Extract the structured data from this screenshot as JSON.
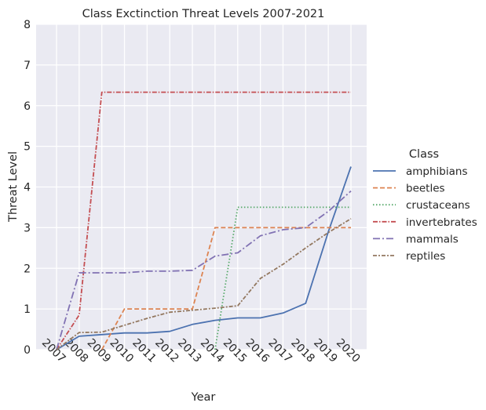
{
  "chart_data": {
    "type": "line",
    "title": "Class Exctinction Threat Levels 2007-2021",
    "xlabel": "Year",
    "ylabel": "Threat Level",
    "legend_title": "Class",
    "legend_position": "right",
    "grid": true,
    "xlim": [
      2007,
      2020
    ],
    "ylim": [
      0,
      8
    ],
    "x_ticks": [
      "2007",
      "2008",
      "2009",
      "2010",
      "2011",
      "2012",
      "2013",
      "2014",
      "2015",
      "2016",
      "2017",
      "2018",
      "2019",
      "2020"
    ],
    "y_ticks": [
      "0",
      "1",
      "2",
      "3",
      "4",
      "5",
      "6",
      "7",
      "8"
    ],
    "series": [
      {
        "name": "amphibians",
        "color": "#4c72b0",
        "dash": "solid",
        "points": [
          [
            2007,
            0.0
          ],
          [
            2008,
            0.33
          ],
          [
            2009,
            0.37
          ],
          [
            2010,
            0.41
          ],
          [
            2011,
            0.41
          ],
          [
            2012,
            0.45
          ],
          [
            2013,
            0.62
          ],
          [
            2014,
            0.72
          ],
          [
            2015,
            0.78
          ],
          [
            2016,
            0.78
          ],
          [
            2017,
            0.9
          ],
          [
            2018,
            1.14
          ],
          [
            2019,
            2.9
          ],
          [
            2020,
            4.5
          ]
        ]
      },
      {
        "name": "beetles",
        "color": "#dd8452",
        "dash": "dashed",
        "points": [
          [
            2009,
            0.0
          ],
          [
            2010,
            1.0
          ],
          [
            2011,
            1.0
          ],
          [
            2012,
            1.0
          ],
          [
            2013,
            1.0
          ],
          [
            2014,
            3.0
          ],
          [
            2015,
            3.0
          ],
          [
            2016,
            3.0
          ],
          [
            2017,
            3.0
          ],
          [
            2018,
            3.0
          ],
          [
            2019,
            3.0
          ],
          [
            2020,
            3.0
          ]
        ]
      },
      {
        "name": "crustaceans",
        "color": "#55a868",
        "dash": "dotted",
        "points": [
          [
            2014,
            0.0
          ],
          [
            2015,
            3.5
          ],
          [
            2016,
            3.5
          ],
          [
            2017,
            3.5
          ],
          [
            2018,
            3.5
          ],
          [
            2019,
            3.5
          ],
          [
            2020,
            3.5
          ]
        ]
      },
      {
        "name": "invertebrates",
        "color": "#c44e52",
        "dash": "dashdot",
        "points": [
          [
            2007,
            0.0
          ],
          [
            2008,
            0.85
          ],
          [
            2009,
            6.33
          ],
          [
            2010,
            6.33
          ],
          [
            2011,
            6.33
          ],
          [
            2012,
            6.33
          ],
          [
            2013,
            6.33
          ],
          [
            2014,
            6.33
          ],
          [
            2015,
            6.33
          ],
          [
            2016,
            6.33
          ],
          [
            2017,
            6.33
          ],
          [
            2018,
            6.33
          ],
          [
            2019,
            6.33
          ],
          [
            2020,
            6.33
          ]
        ]
      },
      {
        "name": "mammals",
        "color": "#8172b3",
        "dash": "dashdotdot",
        "points": [
          [
            2007,
            0.0
          ],
          [
            2008,
            1.89
          ],
          [
            2009,
            1.89
          ],
          [
            2010,
            1.89
          ],
          [
            2011,
            1.93
          ],
          [
            2012,
            1.93
          ],
          [
            2013,
            1.95
          ],
          [
            2014,
            2.3
          ],
          [
            2015,
            2.38
          ],
          [
            2016,
            2.8
          ],
          [
            2017,
            2.95
          ],
          [
            2018,
            3.0
          ],
          [
            2019,
            3.4
          ],
          [
            2020,
            3.9
          ]
        ]
      },
      {
        "name": "reptiles",
        "color": "#937860",
        "dash": "dashdotdot2",
        "points": [
          [
            2007,
            0.0
          ],
          [
            2008,
            0.42
          ],
          [
            2009,
            0.43
          ],
          [
            2010,
            0.6
          ],
          [
            2011,
            0.77
          ],
          [
            2012,
            0.92
          ],
          [
            2013,
            0.97
          ],
          [
            2014,
            1.02
          ],
          [
            2015,
            1.08
          ],
          [
            2016,
            1.75
          ],
          [
            2017,
            2.1
          ],
          [
            2018,
            2.5
          ],
          [
            2019,
            2.88
          ],
          [
            2020,
            3.22
          ]
        ]
      }
    ]
  }
}
